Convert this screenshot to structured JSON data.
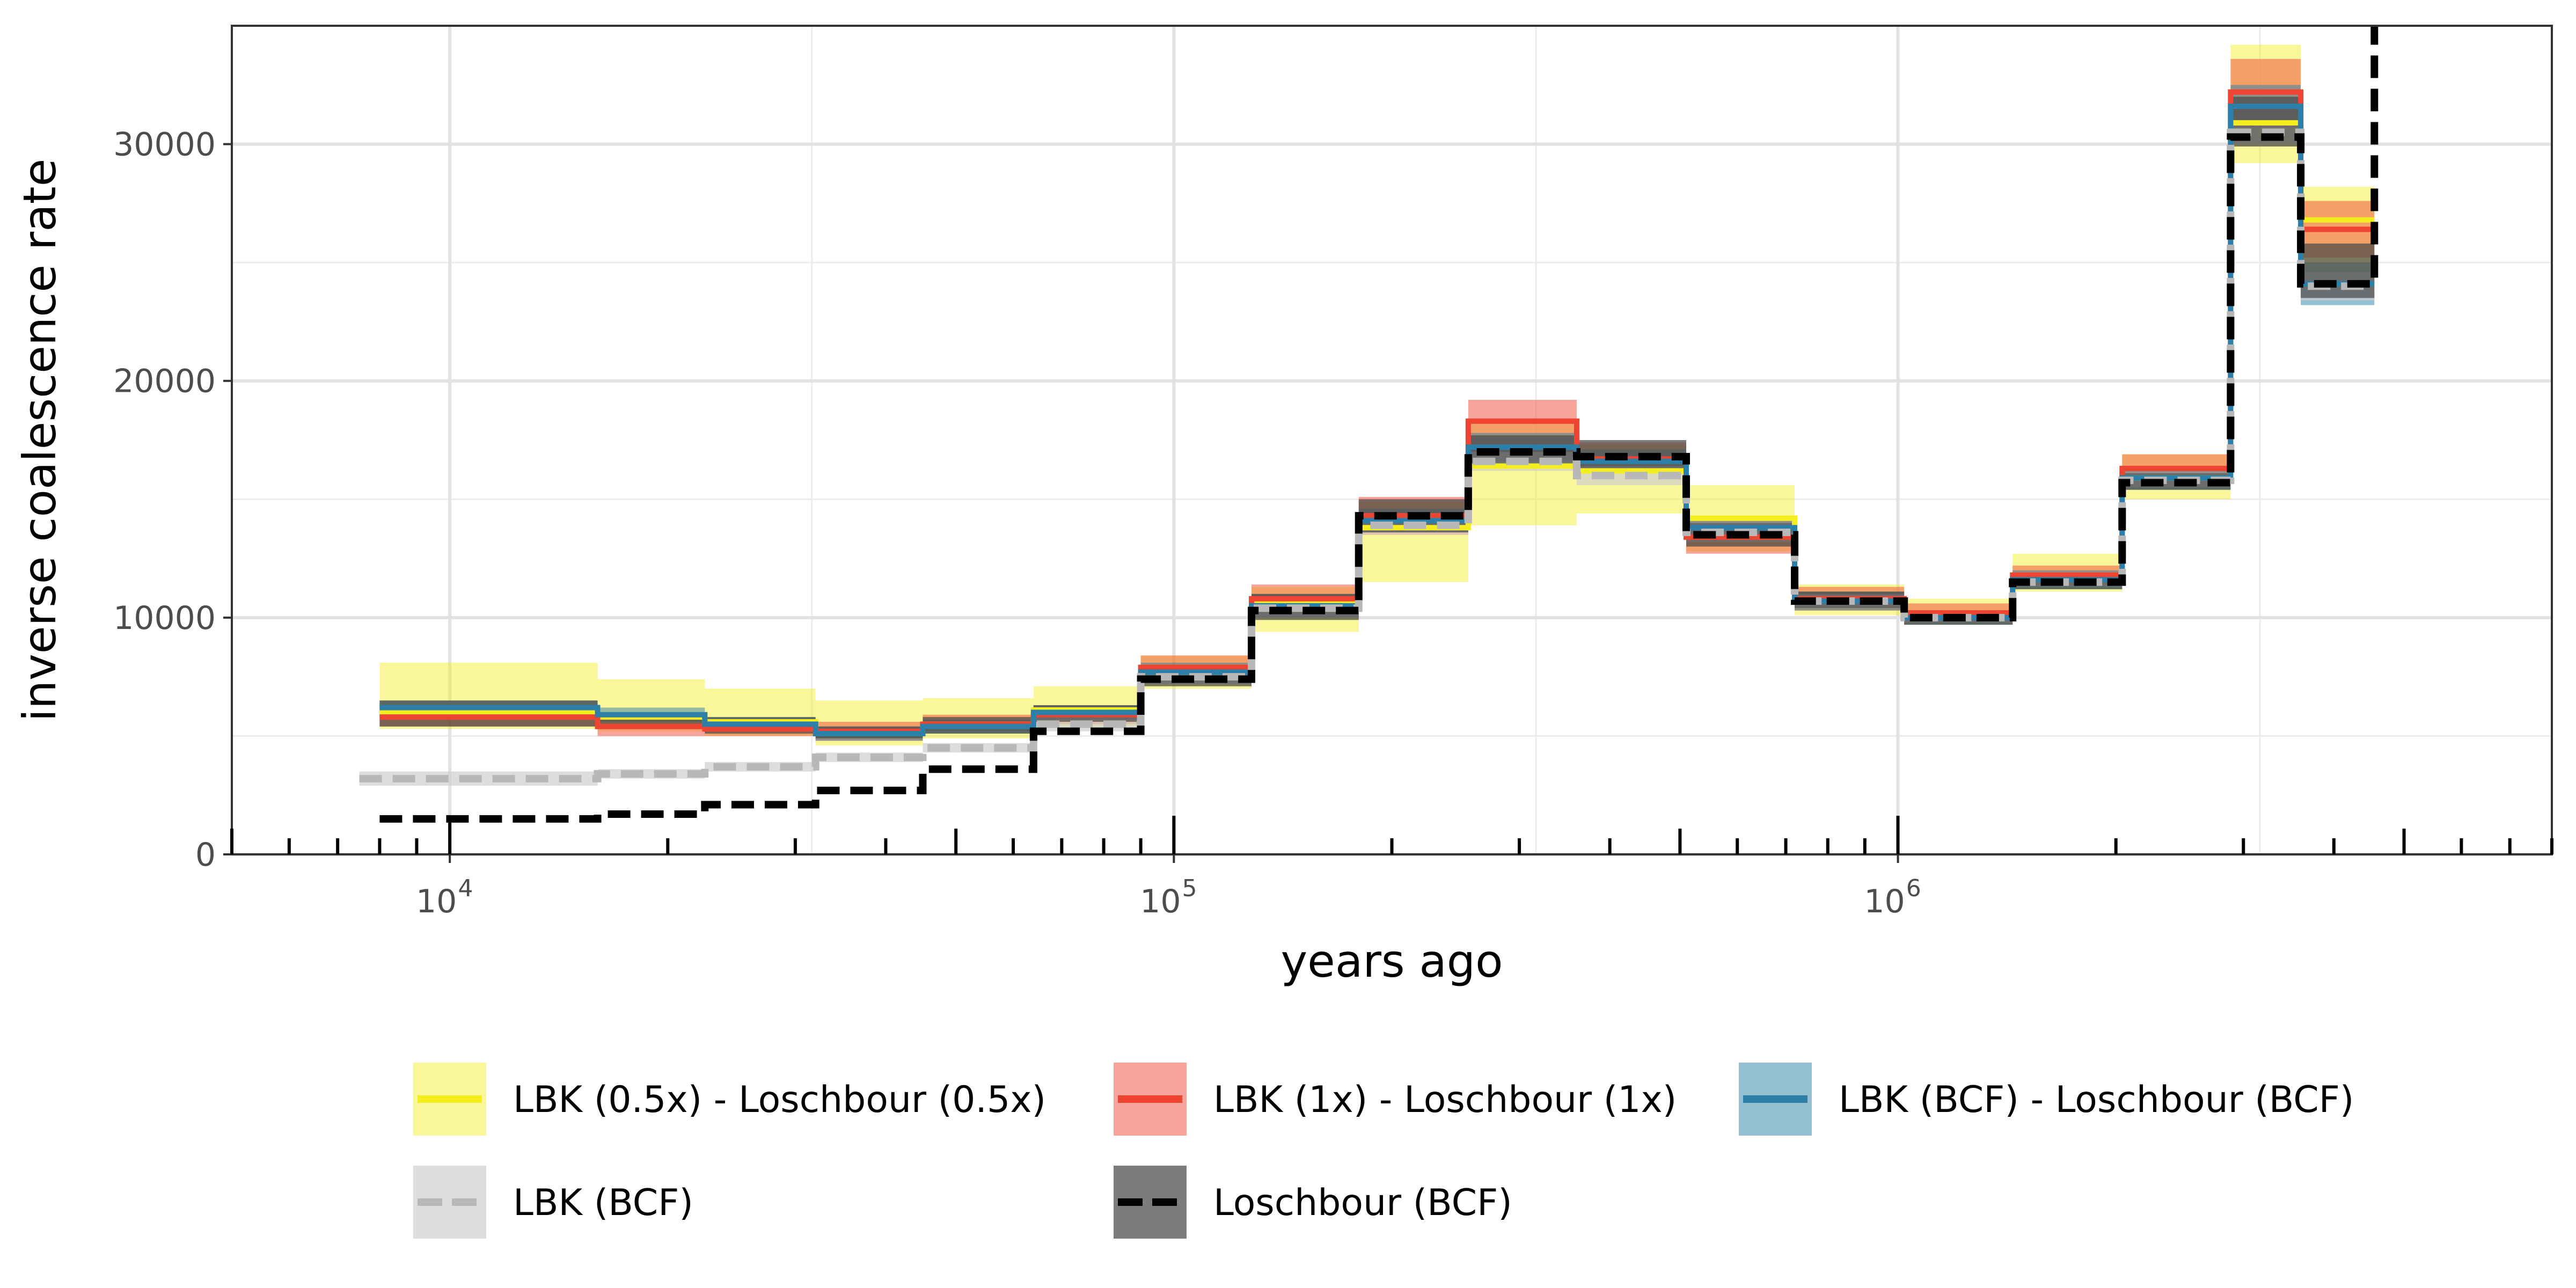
{
  "chart_data": {
    "type": "line",
    "title": "",
    "xlabel": "years ago",
    "ylabel": "inverse coalescence rate",
    "x_scale": "log10",
    "xlim": [
      5000,
      8000000
    ],
    "ylim": [
      0,
      35000
    ],
    "x_tick_values": [
      10000,
      100000,
      1000000
    ],
    "x_tick_labels": [
      {
        "base": "10",
        "exp": "4"
      },
      {
        "base": "10",
        "exp": "5"
      },
      {
        "base": "10",
        "exp": "6"
      }
    ],
    "y_ticks": [
      0,
      10000,
      20000,
      30000
    ],
    "y_tick_labels": [
      "0",
      "10000",
      "20000",
      "30000"
    ],
    "grid": true,
    "legend_position": "bottom",
    "series": [
      {
        "name": "LBK (0.5x) - Loschbour (0.5x)",
        "color": "#f5ee1f",
        "band_color": "#f5ee1f",
        "band_opacity": 0.45,
        "line_style": "solid",
        "line_color": "#f5ee1f",
        "x_breaks": [
          8000,
          16000,
          22500,
          32000,
          45000,
          64000,
          90000,
          128000,
          180000,
          255000,
          360000,
          510000,
          720000,
          1020000,
          1440000,
          2040000,
          2880000,
          3600000,
          4550000
        ],
        "values": [
          6000,
          5800,
          5600,
          5100,
          5500,
          6100,
          7700,
          10600,
          13800,
          16400,
          16200,
          14200,
          10800,
          10100,
          11800,
          15900,
          30900,
          26800
        ],
        "lower": [
          5300,
          5200,
          5000,
          4600,
          4900,
          5400,
          7000,
          9400,
          11500,
          13900,
          14400,
          12800,
          10100,
          9700,
          11100,
          15000,
          29200,
          24400
        ],
        "upper": [
          8100,
          7400,
          7000,
          6500,
          6600,
          7100,
          8400,
          11300,
          14900,
          18200,
          17300,
          15600,
          11400,
          10800,
          12700,
          16900,
          34200,
          28200
        ]
      },
      {
        "name": "LBK (1x) - Loschbour (1x)",
        "color": "#f04a38",
        "band_color": "#f04a38",
        "band_opacity": 0.5,
        "line_style": "solid",
        "line_color": "#ee4432",
        "x_breaks": [
          8000,
          16000,
          22500,
          32000,
          45000,
          64000,
          90000,
          128000,
          180000,
          255000,
          360000,
          510000,
          720000,
          1020000,
          1440000,
          2040000,
          2880000,
          3600000,
          4550000
        ],
        "values": [
          5800,
          5400,
          5300,
          5200,
          5500,
          5900,
          7900,
          10800,
          14300,
          18300,
          16700,
          13400,
          10800,
          10200,
          11800,
          16300,
          32200,
          26400
        ],
        "lower": [
          5400,
          5000,
          5000,
          4800,
          5200,
          5500,
          7400,
          10200,
          13500,
          17000,
          16100,
          12700,
          10300,
          9900,
          11400,
          15800,
          30800,
          25200
        ],
        "upper": [
          6200,
          5800,
          5700,
          5600,
          5900,
          6300,
          8400,
          11400,
          15100,
          19200,
          17400,
          14100,
          11300,
          10600,
          12200,
          16900,
          33600,
          27600
        ]
      },
      {
        "name": "LBK (BCF) - Loschbour (BCF)",
        "color": "#2b7fa8",
        "band_color": "#2b7fa8",
        "band_opacity": 0.5,
        "line_style": "solid",
        "line_color": "#2b7fa8",
        "x_breaks": [
          8000,
          16000,
          22500,
          32000,
          45000,
          64000,
          90000,
          128000,
          180000,
          255000,
          360000,
          510000,
          720000,
          1020000,
          1440000,
          2040000,
          2880000,
          3600000,
          4550000
        ],
        "values": [
          6200,
          5900,
          5500,
          5100,
          5400,
          6000,
          7700,
          10500,
          14100,
          17200,
          16600,
          13800,
          10700,
          10000,
          11600,
          15900,
          31600,
          24100
        ],
        "lower": [
          5900,
          5600,
          5200,
          4800,
          5100,
          5700,
          7300,
          10000,
          13600,
          16600,
          16100,
          13300,
          10300,
          9700,
          11200,
          15400,
          30700,
          23200
        ],
        "upper": [
          6500,
          6200,
          5800,
          5400,
          5700,
          6300,
          8100,
          11000,
          14600,
          17800,
          17100,
          14300,
          11100,
          10300,
          12000,
          16400,
          32500,
          25000
        ]
      },
      {
        "name": "LBK (BCF)",
        "color": "#c6c6c6",
        "band_color": "#cfcfcf",
        "band_opacity": 0.7,
        "line_style": "dashed",
        "line_color": "#b8b8b8",
        "x_breaks": [
          7500,
          16000,
          22500,
          32000,
          45000,
          64000,
          90000,
          128000,
          180000,
          255000,
          360000,
          510000,
          720000,
          1020000,
          1440000,
          2040000,
          2880000,
          3600000,
          4550000
        ],
        "values": [
          3200,
          3400,
          3700,
          4100,
          4500,
          5500,
          7500,
          10400,
          13900,
          16600,
          16000,
          13600,
          10700,
          10000,
          11500,
          15800,
          30500,
          24000
        ],
        "lower": [
          2900,
          3200,
          3500,
          3900,
          4300,
          5200,
          7200,
          10000,
          13500,
          16200,
          15600,
          13200,
          10400,
          9800,
          11300,
          15500,
          30000,
          23400
        ],
        "upper": [
          3500,
          3600,
          3900,
          4300,
          4700,
          5800,
          7800,
          10800,
          14300,
          17000,
          16400,
          14000,
          11000,
          10200,
          11700,
          16100,
          31000,
          24600
        ]
      },
      {
        "name": "Loschbour (BCF)",
        "color": "#000000",
        "band_color": "#4a4a4a",
        "band_opacity": 0.72,
        "line_style": "dashed",
        "line_color": "#000000",
        "x_breaks": [
          8000,
          16000,
          22500,
          32000,
          45000,
          64000,
          90000,
          128000,
          180000,
          255000,
          360000,
          510000,
          720000,
          1020000,
          1440000,
          2040000,
          2880000,
          3600000,
          4550000
        ],
        "values": [
          1500,
          1700,
          2100,
          2700,
          3600,
          5200,
          7400,
          10300,
          14300,
          17000,
          16800,
          13500,
          10700,
          10000,
          11500,
          15700,
          30300,
          24100
        ],
        "final_rise": 35000,
        "lower": [
          5400,
          5300,
          5100,
          4900,
          5100,
          5600,
          7100,
          9900,
          13600,
          16400,
          16200,
          13000,
          10400,
          9700,
          11200,
          15400,
          29900,
          23500
        ],
        "upper": [
          6500,
          6000,
          5800,
          5400,
          5800,
          6300,
          8000,
          11000,
          15000,
          17700,
          17500,
          14000,
          11100,
          10300,
          11900,
          16100,
          32000,
          25800
        ]
      }
    ],
    "legend_rows": [
      [
        "LBK (0.5x) - Loschbour (0.5x)",
        "LBK (1x) - Loschbour (1x)",
        "LBK (BCF) - Loschbour (BCF)"
      ],
      [
        "LBK (BCF)",
        "Loschbour (BCF)"
      ]
    ]
  }
}
